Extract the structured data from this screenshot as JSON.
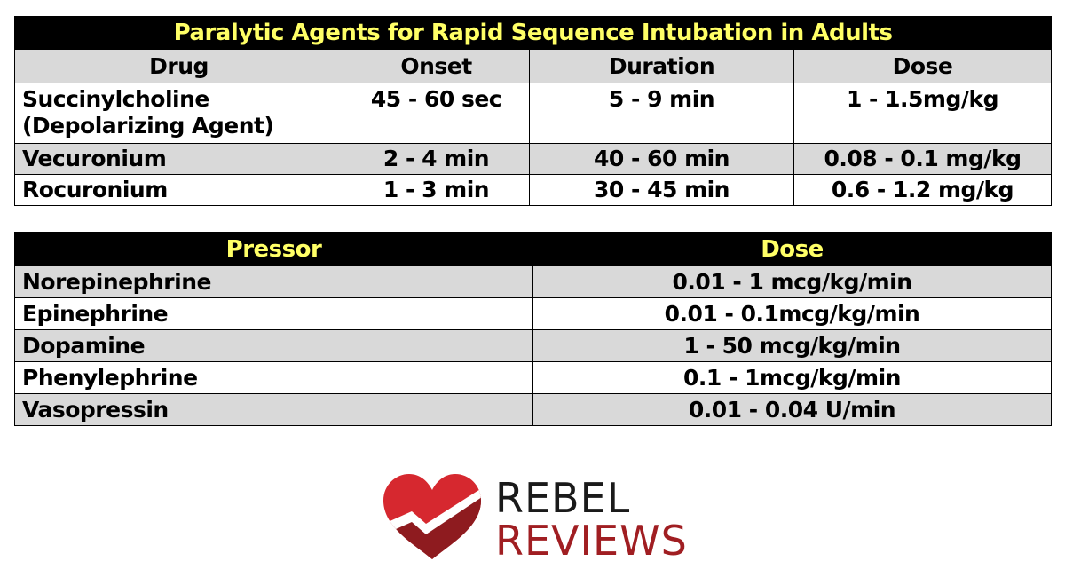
{
  "paralytics": {
    "title": "Paralytic Agents for Rapid Sequence Intubation in Adults",
    "headers": [
      "Drug",
      "Onset",
      "Duration",
      "Dose"
    ],
    "rows": [
      {
        "drug": "Succinylcholine",
        "drug_note": "(Depolarizing Agent)",
        "onset": "45 - 60 sec",
        "duration": "5 - 9 min",
        "dose": "1 - 1.5mg/kg"
      },
      {
        "drug": "Vecuronium",
        "onset": "2 - 4 min",
        "duration": "40 - 60 min",
        "dose": "0.08 - 0.1 mg/kg"
      },
      {
        "drug": "Rocuronium",
        "onset": "1 - 3 min",
        "duration": "30 - 45 min",
        "dose": "0.6 - 1.2 mg/kg"
      }
    ]
  },
  "pressors": {
    "headers": [
      "Pressor",
      "Dose"
    ],
    "rows": [
      {
        "name": "Norepinephrine",
        "dose": "0.01 - 1 mcg/kg/min"
      },
      {
        "name": "Epinephrine",
        "dose": "0.01 - 0.1mcg/kg/min"
      },
      {
        "name": "Dopamine",
        "dose": "1 - 50 mcg/kg/min"
      },
      {
        "name": "Phenylephrine",
        "dose": "0.1 - 1mcg/kg/min"
      },
      {
        "name": "Vasopressin",
        "dose": "0.01 - 0.04 U/min"
      }
    ]
  },
  "logo": {
    "line1": "REBEL",
    "line2": "REVIEWS",
    "icon": "heart-checkmark-icon",
    "colors": {
      "heart_light": "#d6282f",
      "heart_dark": "#8e1b1f",
      "text_dark": "#1a1a1a",
      "text_red": "#a01e22"
    }
  },
  "colors": {
    "title_bg": "#000000",
    "title_text": "#ffff66",
    "row_gray": "#d9d9d9",
    "row_white": "#ffffff"
  }
}
